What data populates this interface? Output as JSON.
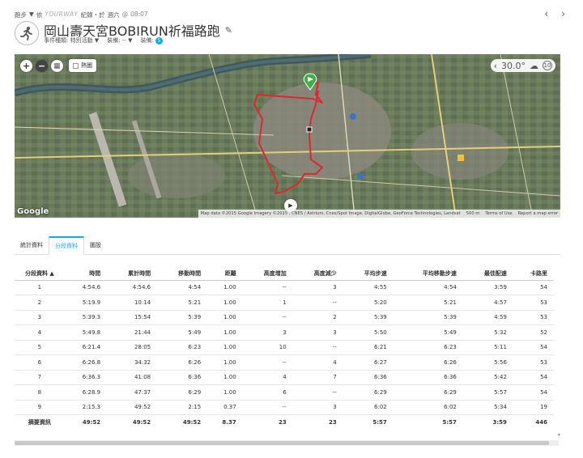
{
  "breadcrumb": {
    "section": "跑步",
    "arrow": "▼",
    "by": "依",
    "brand": "YOURWAY",
    "recorded": "紀錄・於",
    "date": "週六",
    "at": "@",
    "time": "08:07"
  },
  "nav": {
    "prev": "‹",
    "next": "›"
  },
  "activity": {
    "icon": "runner-icon",
    "title": "岡山壽天宮BOBIRUN祈福路跑",
    "meta_type": "事件種類: 特別活動 ▼",
    "meta_gear": "裝備: -- ▼",
    "meta_gear2": "装備:",
    "meta_badge": "5"
  },
  "map": {
    "zoom_in": "+",
    "zoom_out": "−",
    "layers": "≡",
    "heatmap_label": "熱圖",
    "temperature": "30.0°",
    "weather_icon": "cloud-icon",
    "wind": "10",
    "google": "Google",
    "attribution": "Map data ©2015 Google Imagery ©2015 , CNES / Astrium, Cnes/Spot Image, DigitalGlobe, GeoForce Technologies, Landsat",
    "scale": "500 m",
    "terms": "Terms of Use",
    "report": "Report a map error"
  },
  "tabs": [
    "統計資料",
    "分段資料",
    "圖設"
  ],
  "active_tab": 1,
  "table": {
    "headers": [
      "分段資料 ▲",
      "時間",
      "累計時間",
      "移動時間",
      "距離",
      "高度增加",
      "高度減少",
      "平均步速",
      "平均移動步速",
      "最佳配速",
      "卡路里"
    ],
    "rows": [
      [
        "1",
        "4:54.6",
        "4:54.6",
        "4:54",
        "1.00",
        "--",
        "3",
        "4:55",
        "4:54",
        "3:59",
        "54"
      ],
      [
        "2",
        "5:19.9",
        "10:14",
        "5:21",
        "1.00",
        "1",
        "--",
        "5:20",
        "5:21",
        "4:57",
        "53"
      ],
      [
        "3",
        "5:39.3",
        "15:54",
        "5:39",
        "1.00",
        "--",
        "2",
        "5:39",
        "5:39",
        "4:59",
        "53"
      ],
      [
        "4",
        "5:49.8",
        "21:44",
        "5:49",
        "1.00",
        "3",
        "3",
        "5:50",
        "5:49",
        "5:32",
        "52"
      ],
      [
        "5",
        "6:21.4",
        "28:05",
        "6:23",
        "1.00",
        "10",
        "--",
        "6:21",
        "6:23",
        "5:11",
        "54"
      ],
      [
        "6",
        "6:26.8",
        "34:32",
        "6:26",
        "1.00",
        "--",
        "4",
        "6:27",
        "6:26",
        "5:56",
        "53"
      ],
      [
        "7",
        "6:36.3",
        "41:08",
        "6:36",
        "1.00",
        "4",
        "7",
        "6:36",
        "6:36",
        "5:42",
        "54"
      ],
      [
        "8",
        "6:28.9",
        "47:37",
        "6:29",
        "1.00",
        "6",
        "--",
        "6:29",
        "6:29",
        "5:57",
        "54"
      ],
      [
        "9",
        "2:15.3",
        "49:52",
        "2:15",
        "0.37",
        "--",
        "3",
        "6:02",
        "6:02",
        "5:34",
        "19"
      ]
    ],
    "summary": [
      "摘要資訊",
      "49:52",
      "49:52",
      "49:52",
      "8.37",
      "23",
      "23",
      "5:57",
      "5:57",
      "3:59",
      "446"
    ]
  },
  "colors": {
    "accent": "#11a9ed",
    "route": "#e0262f",
    "start": "#3cb24a"
  }
}
